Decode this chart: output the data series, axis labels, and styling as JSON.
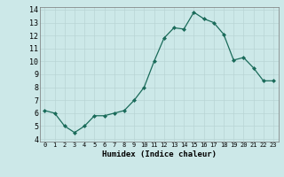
{
  "x": [
    0,
    1,
    2,
    3,
    4,
    5,
    6,
    7,
    8,
    9,
    10,
    11,
    12,
    13,
    14,
    15,
    16,
    17,
    18,
    19,
    20,
    21,
    22,
    23
  ],
  "y": [
    6.2,
    6.0,
    5.0,
    4.5,
    5.0,
    5.8,
    5.8,
    6.0,
    6.2,
    7.0,
    8.0,
    10.0,
    11.8,
    12.6,
    12.5,
    13.8,
    13.3,
    13.0,
    12.1,
    10.1,
    10.3,
    9.5,
    8.5,
    8.5
  ],
  "xlabel": "Humidex (Indice chaleur)",
  "xlim": [
    -0.5,
    23.5
  ],
  "ylim": [
    3.8,
    14.2
  ],
  "yticks": [
    4,
    5,
    6,
    7,
    8,
    9,
    10,
    11,
    12,
    13,
    14
  ],
  "xticks": [
    0,
    1,
    2,
    3,
    4,
    5,
    6,
    7,
    8,
    9,
    10,
    11,
    12,
    13,
    14,
    15,
    16,
    17,
    18,
    19,
    20,
    21,
    22,
    23
  ],
  "line_color": "#1a6b5a",
  "marker_color": "#1a6b5a",
  "bg_color": "#cce8e8",
  "grid_color": "#b8d4d4"
}
